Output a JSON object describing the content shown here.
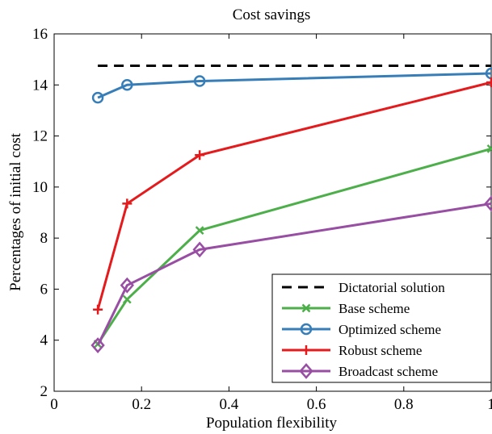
{
  "chart_data": {
    "type": "line",
    "title": "Cost savings",
    "xlabel": "Population flexibility",
    "ylabel": "Percentages of initial cost",
    "xlim": [
      0,
      1
    ],
    "ylim": [
      2,
      16
    ],
    "xticks": [
      0,
      0.2,
      0.4,
      0.6,
      0.8,
      1
    ],
    "yticks": [
      2,
      4,
      6,
      8,
      10,
      12,
      14,
      16
    ],
    "xtick_labels": [
      "0",
      "0.2",
      "0.4",
      "0.6",
      "0.8",
      "1"
    ],
    "ytick_labels": [
      "2",
      "4",
      "6",
      "8",
      "10",
      "12",
      "14",
      "16"
    ],
    "grid": false,
    "legend_position": "bottom-right",
    "series": [
      {
        "name": "Dictatorial solution",
        "color": "#000000",
        "dash": "dashed",
        "marker": "none",
        "x": [
          0.1,
          1
        ],
        "y": [
          14.75,
          14.75
        ]
      },
      {
        "name": "Base scheme",
        "color": "#4daf4a",
        "dash": "solid",
        "marker": "x",
        "x": [
          0.1,
          0.167,
          0.333,
          1
        ],
        "y": [
          3.85,
          5.6,
          8.3,
          11.5
        ]
      },
      {
        "name": "Optimized scheme",
        "color": "#377eb8",
        "dash": "solid",
        "marker": "circle",
        "x": [
          0.1,
          0.167,
          0.333,
          1
        ],
        "y": [
          13.5,
          14.0,
          14.15,
          14.45
        ]
      },
      {
        "name": "Robust scheme",
        "color": "#e41a1c",
        "dash": "solid",
        "marker": "plus",
        "x": [
          0.1,
          0.167,
          0.333,
          1
        ],
        "y": [
          5.2,
          9.35,
          11.25,
          14.1
        ]
      },
      {
        "name": "Broadcast scheme",
        "color": "#984ea3",
        "dash": "solid",
        "marker": "diamond",
        "x": [
          0.1,
          0.167,
          0.333,
          1
        ],
        "y": [
          3.8,
          6.15,
          7.55,
          9.35
        ]
      }
    ]
  }
}
